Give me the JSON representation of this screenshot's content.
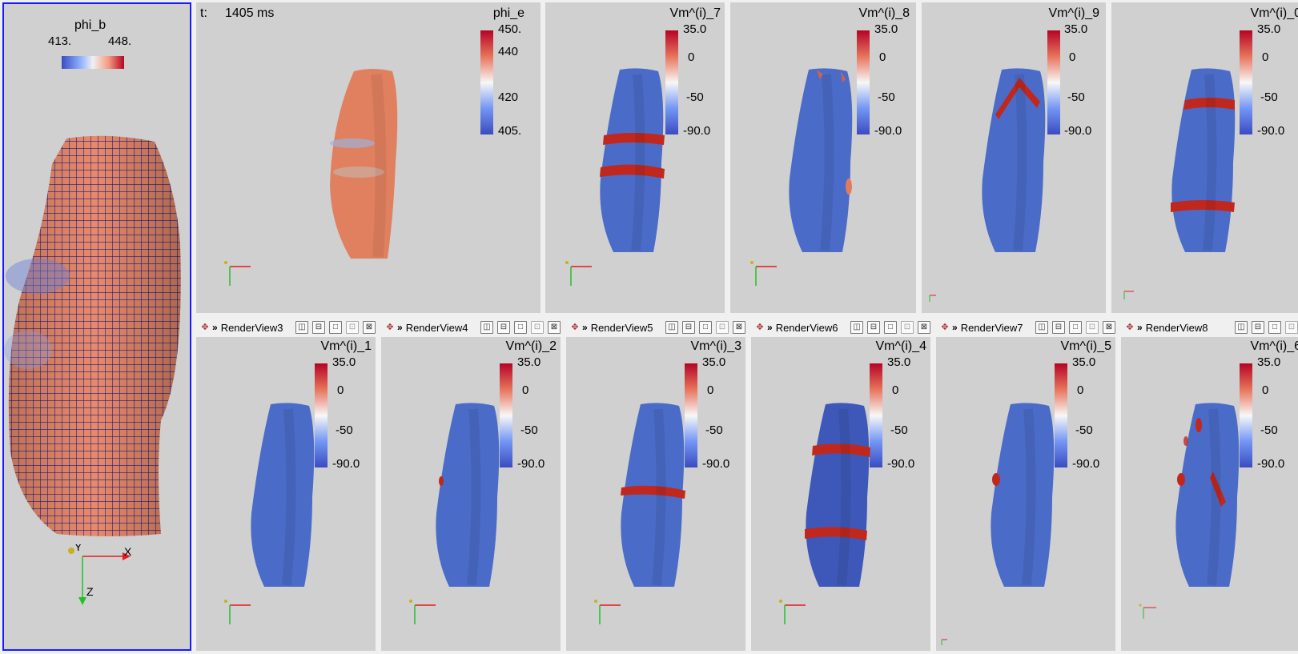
{
  "main": {
    "title": "phi_b",
    "range_min": "413.",
    "range_max": "448.",
    "axes": {
      "x": "X",
      "y": "Y",
      "z": "Z"
    },
    "mesh_color": "#1c1c8a",
    "surface_color": "#e88a6a"
  },
  "phi_e_view": {
    "time_prefix": "t:",
    "time_value": "1405 ms",
    "title": "phi_e",
    "ticks": [
      "450.",
      "440",
      "420",
      "405."
    ],
    "surface_color": "#e0805e"
  },
  "voltage_ticks": [
    "35.0",
    "0",
    "-50",
    "-90.0"
  ],
  "views_top": [
    {
      "title": "Vm^(i)_7"
    },
    {
      "title": "Vm^(i)_8"
    },
    {
      "title": "Vm^(i)_9"
    },
    {
      "title": "Vm^(i)_0"
    }
  ],
  "views_bottom": [
    {
      "tab": "RenderView3",
      "title": "Vm^(i)_1"
    },
    {
      "tab": "RenderView4",
      "title": "Vm^(i)_2"
    },
    {
      "tab": "RenderView5",
      "title": "Vm^(i)_3"
    },
    {
      "tab": "RenderView6",
      "title": "Vm^(i)_4"
    },
    {
      "tab": "RenderView7",
      "title": "Vm^(i)_5"
    },
    {
      "tab": "RenderView8",
      "title": "Vm^(i)_6"
    }
  ],
  "toolbar_icons": [
    "split-horizontal-icon",
    "split-vertical-icon",
    "maximize-icon",
    "capture-icon",
    "close-icon"
  ],
  "colors": {
    "tissue_blue": "#4a6cc8",
    "band_red": "#c0281e",
    "background": "#d0d0d0",
    "active_border": "#1a1aff"
  }
}
